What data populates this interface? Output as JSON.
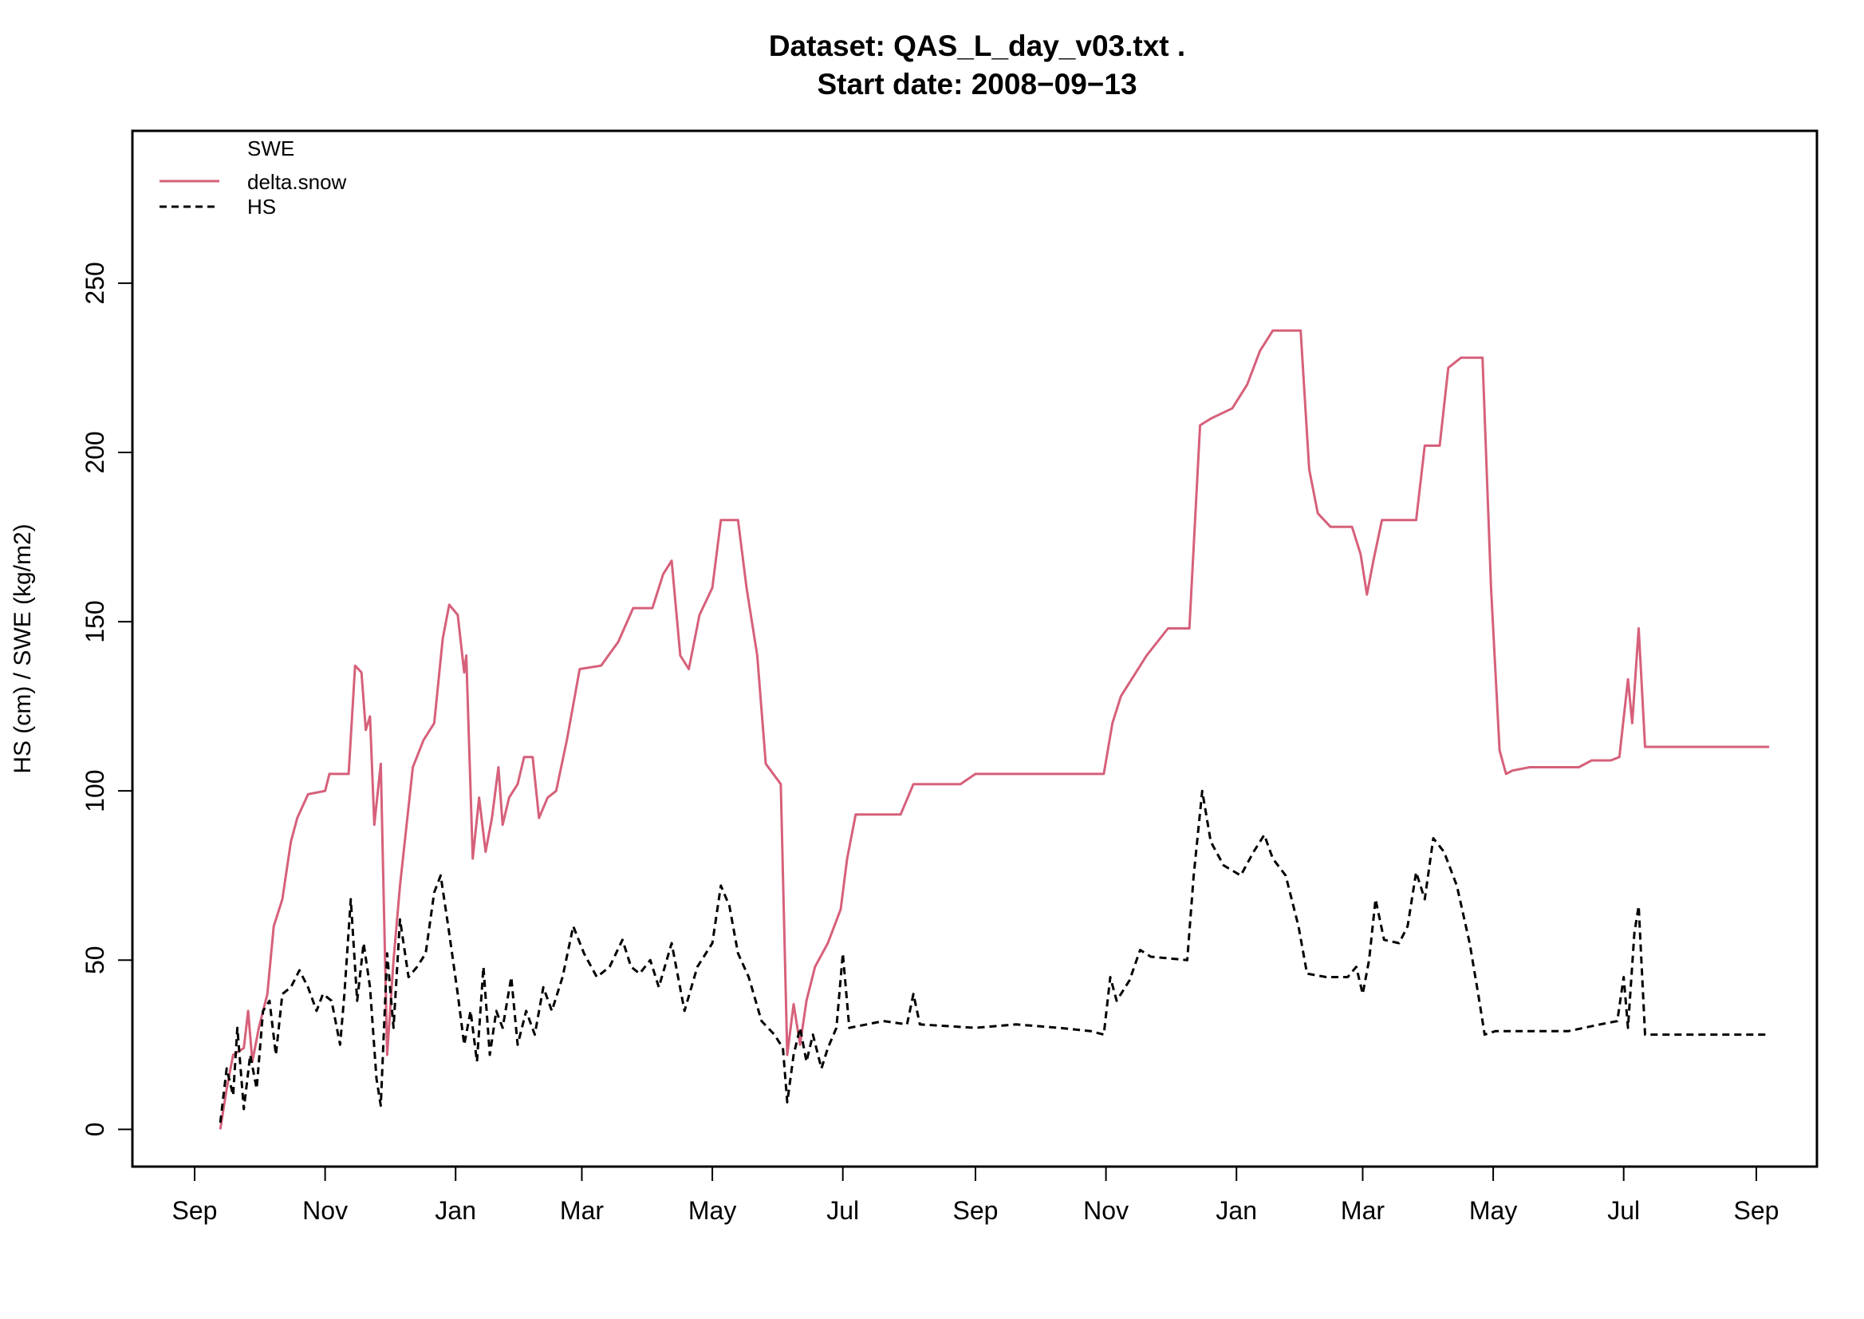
{
  "chart_data": {
    "type": "line",
    "title": "Dataset:  QAS_L_day_v03.txt .",
    "subtitle": "Start date:  2008−09−13",
    "xlabel": "",
    "ylabel": "HS (cm) / SWE (kg/m2)",
    "xlim": [
      "2008-09-13",
      "2010-09-07"
    ],
    "ylim": [
      -11,
      295
    ],
    "x_ticks": [
      {
        "date": "2008-09-01",
        "label": "Sep"
      },
      {
        "date": "2008-11-01",
        "label": "Nov"
      },
      {
        "date": "2009-01-01",
        "label": "Jan"
      },
      {
        "date": "2009-03-01",
        "label": "Mar"
      },
      {
        "date": "2009-05-01",
        "label": "May"
      },
      {
        "date": "2009-07-01",
        "label": "Jul"
      },
      {
        "date": "2009-09-01",
        "label": "Sep"
      },
      {
        "date": "2009-11-01",
        "label": "Nov"
      },
      {
        "date": "2010-01-01",
        "label": "Jan"
      },
      {
        "date": "2010-03-01",
        "label": "Mar"
      },
      {
        "date": "2010-05-01",
        "label": "May"
      },
      {
        "date": "2010-07-01",
        "label": "Jul"
      },
      {
        "date": "2010-09-01",
        "label": "Sep"
      }
    ],
    "y_ticks": [
      0,
      50,
      100,
      150,
      200,
      250
    ],
    "grid": false,
    "legend": {
      "placement": "top-left",
      "header": "SWE",
      "entries": [
        {
          "label": "delta.snow",
          "color": "#D6607A",
          "dash": "solid"
        },
        {
          "label": "HS",
          "color": "#000000",
          "dash": "dashed"
        }
      ]
    },
    "series": [
      {
        "name": "delta.snow",
        "color": "#D6607A",
        "style": "solid",
        "points": [
          [
            "2008-09-13",
            0
          ],
          [
            "2008-09-16",
            12
          ],
          [
            "2008-09-19",
            22
          ],
          [
            "2008-09-24",
            24
          ],
          [
            "2008-09-26",
            35
          ],
          [
            "2008-09-28",
            20
          ],
          [
            "2008-10-01",
            30
          ],
          [
            "2008-10-05",
            40
          ],
          [
            "2008-10-08",
            60
          ],
          [
            "2008-10-12",
            68
          ],
          [
            "2008-10-16",
            85
          ],
          [
            "2008-10-19",
            92
          ],
          [
            "2008-10-24",
            99
          ],
          [
            "2008-11-01",
            100
          ],
          [
            "2008-11-03",
            105
          ],
          [
            "2008-11-12",
            105
          ],
          [
            "2008-11-15",
            137
          ],
          [
            "2008-11-18",
            135
          ],
          [
            "2008-11-20",
            118
          ],
          [
            "2008-11-22",
            122
          ],
          [
            "2008-11-24",
            90
          ],
          [
            "2008-11-27",
            108
          ],
          [
            "2008-11-30",
            22
          ],
          [
            "2008-12-03",
            50
          ],
          [
            "2008-12-06",
            72
          ],
          [
            "2008-12-12",
            107
          ],
          [
            "2008-12-17",
            115
          ],
          [
            "2008-12-22",
            120
          ],
          [
            "2008-12-26",
            145
          ],
          [
            "2008-12-29",
            155
          ],
          [
            "2009-01-02",
            152
          ],
          [
            "2009-01-05",
            135
          ],
          [
            "2009-01-06",
            140
          ],
          [
            "2009-01-09",
            80
          ],
          [
            "2009-01-12",
            98
          ],
          [
            "2009-01-15",
            82
          ],
          [
            "2009-01-18",
            92
          ],
          [
            "2009-01-21",
            107
          ],
          [
            "2009-01-23",
            90
          ],
          [
            "2009-01-26",
            98
          ],
          [
            "2009-01-30",
            102
          ],
          [
            "2009-02-02",
            110
          ],
          [
            "2009-02-06",
            110
          ],
          [
            "2009-02-09",
            92
          ],
          [
            "2009-02-13",
            98
          ],
          [
            "2009-02-17",
            100
          ],
          [
            "2009-02-22",
            115
          ],
          [
            "2009-02-28",
            136
          ],
          [
            "2009-03-10",
            137
          ],
          [
            "2009-03-18",
            144
          ],
          [
            "2009-03-25",
            154
          ],
          [
            "2009-04-03",
            154
          ],
          [
            "2009-04-08",
            164
          ],
          [
            "2009-04-12",
            168
          ],
          [
            "2009-04-16",
            140
          ],
          [
            "2009-04-20",
            136
          ],
          [
            "2009-04-25",
            152
          ],
          [
            "2009-05-01",
            160
          ],
          [
            "2009-05-05",
            180
          ],
          [
            "2009-05-13",
            180
          ],
          [
            "2009-05-17",
            160
          ],
          [
            "2009-05-22",
            140
          ],
          [
            "2009-05-26",
            108
          ],
          [
            "2009-06-02",
            102
          ],
          [
            "2009-06-05",
            22
          ],
          [
            "2009-06-08",
            37
          ],
          [
            "2009-06-11",
            25
          ],
          [
            "2009-06-14",
            38
          ],
          [
            "2009-06-18",
            48
          ],
          [
            "2009-06-24",
            55
          ],
          [
            "2009-06-30",
            65
          ],
          [
            "2009-07-03",
            80
          ],
          [
            "2009-07-07",
            93
          ],
          [
            "2009-07-12",
            93
          ],
          [
            "2009-07-28",
            93
          ],
          [
            "2009-08-03",
            102
          ],
          [
            "2009-08-25",
            102
          ],
          [
            "2009-09-01",
            105
          ],
          [
            "2009-10-31",
            105
          ],
          [
            "2009-11-04",
            120
          ],
          [
            "2009-11-08",
            128
          ],
          [
            "2009-11-15",
            135
          ],
          [
            "2009-11-20",
            140
          ],
          [
            "2009-11-30",
            148
          ],
          [
            "2009-12-10",
            148
          ],
          [
            "2009-12-15",
            208
          ],
          [
            "2009-12-20",
            210
          ],
          [
            "2009-12-30",
            213
          ],
          [
            "2010-01-06",
            220
          ],
          [
            "2010-01-12",
            230
          ],
          [
            "2010-01-18",
            236
          ],
          [
            "2010-01-31",
            236
          ],
          [
            "2010-02-04",
            195
          ],
          [
            "2010-02-08",
            182
          ],
          [
            "2010-02-14",
            178
          ],
          [
            "2010-02-24",
            178
          ],
          [
            "2010-02-28",
            170
          ],
          [
            "2010-03-03",
            158
          ],
          [
            "2010-03-06",
            168
          ],
          [
            "2010-03-10",
            180
          ],
          [
            "2010-03-26",
            180
          ],
          [
            "2010-03-30",
            202
          ],
          [
            "2010-04-06",
            202
          ],
          [
            "2010-04-10",
            225
          ],
          [
            "2010-04-16",
            228
          ],
          [
            "2010-04-26",
            228
          ],
          [
            "2010-04-30",
            160
          ],
          [
            "2010-05-04",
            112
          ],
          [
            "2010-05-07",
            105
          ],
          [
            "2010-05-10",
            106
          ],
          [
            "2010-05-18",
            107
          ],
          [
            "2010-06-10",
            107
          ],
          [
            "2010-06-16",
            109
          ],
          [
            "2010-06-25",
            109
          ],
          [
            "2010-06-29",
            110
          ],
          [
            "2010-07-03",
            133
          ],
          [
            "2010-07-05",
            120
          ],
          [
            "2010-07-08",
            148
          ],
          [
            "2010-07-11",
            113
          ],
          [
            "2010-08-10",
            113
          ],
          [
            "2010-09-07",
            113
          ]
        ]
      },
      {
        "name": "HS",
        "color": "#000000",
        "style": "dashed",
        "points": [
          [
            "2008-09-13",
            2
          ],
          [
            "2008-09-16",
            18
          ],
          [
            "2008-09-19",
            10
          ],
          [
            "2008-09-21",
            30
          ],
          [
            "2008-09-24",
            6
          ],
          [
            "2008-09-27",
            22
          ],
          [
            "2008-09-30",
            12
          ],
          [
            "2008-10-03",
            35
          ],
          [
            "2008-10-06",
            38
          ],
          [
            "2008-10-09",
            22
          ],
          [
            "2008-10-12",
            40
          ],
          [
            "2008-10-16",
            42
          ],
          [
            "2008-10-20",
            47
          ],
          [
            "2008-10-24",
            42
          ],
          [
            "2008-10-28",
            35
          ],
          [
            "2008-10-31",
            40
          ],
          [
            "2008-11-04",
            38
          ],
          [
            "2008-11-08",
            25
          ],
          [
            "2008-11-10",
            40
          ],
          [
            "2008-11-13",
            68
          ],
          [
            "2008-11-16",
            38
          ],
          [
            "2008-11-19",
            55
          ],
          [
            "2008-11-22",
            42
          ],
          [
            "2008-11-25",
            15
          ],
          [
            "2008-11-27",
            7
          ],
          [
            "2008-11-30",
            52
          ],
          [
            "2008-12-03",
            30
          ],
          [
            "2008-12-06",
            62
          ],
          [
            "2008-12-10",
            45
          ],
          [
            "2008-12-14",
            48
          ],
          [
            "2008-12-18",
            52
          ],
          [
            "2008-12-22",
            70
          ],
          [
            "2008-12-25",
            75
          ],
          [
            "2008-12-29",
            58
          ],
          [
            "2009-01-02",
            40
          ],
          [
            "2009-01-05",
            25
          ],
          [
            "2009-01-08",
            35
          ],
          [
            "2009-01-11",
            20
          ],
          [
            "2009-01-14",
            48
          ],
          [
            "2009-01-17",
            22
          ],
          [
            "2009-01-20",
            35
          ],
          [
            "2009-01-23",
            30
          ],
          [
            "2009-01-27",
            45
          ],
          [
            "2009-01-30",
            25
          ],
          [
            "2009-02-03",
            35
          ],
          [
            "2009-02-07",
            28
          ],
          [
            "2009-02-11",
            42
          ],
          [
            "2009-02-15",
            35
          ],
          [
            "2009-02-20",
            45
          ],
          [
            "2009-02-25",
            60
          ],
          [
            "2009-03-02",
            52
          ],
          [
            "2009-03-08",
            45
          ],
          [
            "2009-03-14",
            48
          ],
          [
            "2009-03-20",
            56
          ],
          [
            "2009-03-24",
            48
          ],
          [
            "2009-03-28",
            46
          ],
          [
            "2009-04-02",
            50
          ],
          [
            "2009-04-06",
            42
          ],
          [
            "2009-04-12",
            55
          ],
          [
            "2009-04-18",
            35
          ],
          [
            "2009-04-24",
            48
          ],
          [
            "2009-05-01",
            55
          ],
          [
            "2009-05-05",
            72
          ],
          [
            "2009-05-09",
            66
          ],
          [
            "2009-05-13",
            52
          ],
          [
            "2009-05-18",
            45
          ],
          [
            "2009-05-24",
            32
          ],
          [
            "2009-05-30",
            28
          ],
          [
            "2009-06-03",
            24
          ],
          [
            "2009-06-05",
            8
          ],
          [
            "2009-06-08",
            22
          ],
          [
            "2009-06-11",
            30
          ],
          [
            "2009-06-14",
            20
          ],
          [
            "2009-06-17",
            28
          ],
          [
            "2009-06-21",
            18
          ],
          [
            "2009-06-24",
            24
          ],
          [
            "2009-06-28",
            30
          ],
          [
            "2009-07-01",
            52
          ],
          [
            "2009-07-04",
            30
          ],
          [
            "2009-07-20",
            32
          ],
          [
            "2009-07-31",
            31
          ],
          [
            "2009-08-03",
            40
          ],
          [
            "2009-08-06",
            31
          ],
          [
            "2009-09-01",
            30
          ],
          [
            "2009-09-20",
            31
          ],
          [
            "2009-10-10",
            30
          ],
          [
            "2009-10-25",
            29
          ],
          [
            "2009-10-31",
            28
          ],
          [
            "2009-11-03",
            45
          ],
          [
            "2009-11-06",
            38
          ],
          [
            "2009-11-12",
            44
          ],
          [
            "2009-11-17",
            53
          ],
          [
            "2009-11-22",
            51
          ],
          [
            "2009-12-09",
            50
          ],
          [
            "2009-12-12",
            75
          ],
          [
            "2009-12-16",
            100
          ],
          [
            "2009-12-20",
            85
          ],
          [
            "2009-12-26",
            78
          ],
          [
            "2010-01-03",
            75
          ],
          [
            "2010-01-09",
            82
          ],
          [
            "2010-01-14",
            87
          ],
          [
            "2010-01-18",
            80
          ],
          [
            "2010-01-24",
            75
          ],
          [
            "2010-01-30",
            60
          ],
          [
            "2010-02-03",
            46
          ],
          [
            "2010-02-12",
            45
          ],
          [
            "2010-02-22",
            45
          ],
          [
            "2010-02-26",
            48
          ],
          [
            "2010-03-01",
            40
          ],
          [
            "2010-03-04",
            50
          ],
          [
            "2010-03-07",
            68
          ],
          [
            "2010-03-11",
            56
          ],
          [
            "2010-03-18",
            55
          ],
          [
            "2010-03-22",
            60
          ],
          [
            "2010-03-26",
            76
          ],
          [
            "2010-03-30",
            68
          ],
          [
            "2010-04-03",
            86
          ],
          [
            "2010-04-08",
            82
          ],
          [
            "2010-04-14",
            72
          ],
          [
            "2010-04-20",
            55
          ],
          [
            "2010-04-24",
            40
          ],
          [
            "2010-04-27",
            28
          ],
          [
            "2010-05-02",
            29
          ],
          [
            "2010-06-05",
            29
          ],
          [
            "2010-06-20",
            31
          ],
          [
            "2010-06-28",
            32
          ],
          [
            "2010-07-01",
            45
          ],
          [
            "2010-07-03",
            30
          ],
          [
            "2010-07-06",
            58
          ],
          [
            "2010-07-08",
            66
          ],
          [
            "2010-07-11",
            28
          ],
          [
            "2010-09-07",
            28
          ]
        ]
      }
    ]
  }
}
